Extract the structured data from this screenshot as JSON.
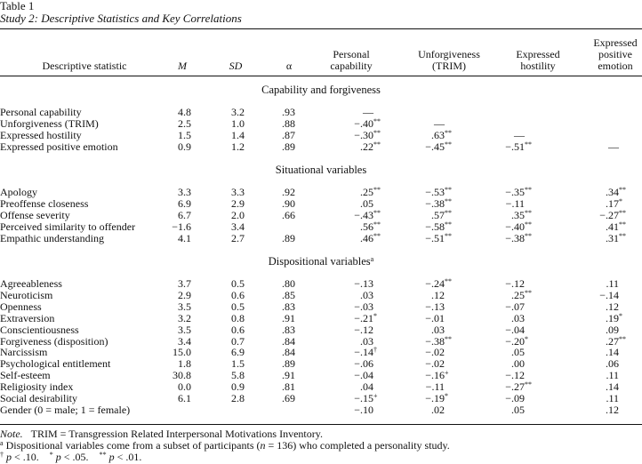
{
  "caption": {
    "number": "Table 1",
    "title": "Study 2: Descriptive Statistics and Key Correlations"
  },
  "columns": {
    "stat": "Descriptive statistic",
    "m": "M",
    "sd": "SD",
    "alpha": "α",
    "pc_1": "Personal",
    "pc_2": "capability",
    "unf_1": "Unforgiveness",
    "unf_2": "(TRIM)",
    "eh_1": "Expressed",
    "eh_2": "hostility",
    "epe_1": "Expressed",
    "epe_2": "positive",
    "epe_3": "emotion"
  },
  "sections": [
    {
      "title": "Capability and forgiveness",
      "title_sup": "",
      "rows": [
        {
          "label": "Personal capability",
          "m": "4.8",
          "sd": "3.2",
          "alpha": ".93",
          "pc": "—",
          "pc_s": "",
          "unf": "",
          "unf_s": "",
          "eh": "",
          "eh_s": "",
          "epe": "",
          "epe_s": ""
        },
        {
          "label": "Unforgiveness (TRIM)",
          "m": "2.5",
          "sd": "1.0",
          "alpha": ".88",
          "pc": "−.40",
          "pc_s": "**",
          "unf": "—",
          "unf_s": "",
          "eh": "",
          "eh_s": "",
          "epe": "",
          "epe_s": ""
        },
        {
          "label": "Expressed hostility",
          "m": "1.5",
          "sd": "1.4",
          "alpha": ".87",
          "pc": "−.30",
          "pc_s": "**",
          "unf": ".63",
          "unf_s": "**",
          "eh": "—",
          "eh_s": "",
          "epe": "",
          "epe_s": ""
        },
        {
          "label": "Expressed positive emotion",
          "m": "0.9",
          "sd": "1.2",
          "alpha": ".89",
          "pc": ".22",
          "pc_s": "**",
          "unf": "−.45",
          "unf_s": "**",
          "eh": "−.51",
          "eh_s": "**",
          "epe": "—",
          "epe_s": ""
        }
      ]
    },
    {
      "title": "Situational variables",
      "title_sup": "",
      "rows": [
        {
          "label": "Apology",
          "m": "3.3",
          "sd": "3.3",
          "alpha": ".92",
          "pc": ".25",
          "pc_s": "**",
          "unf": "−.53",
          "unf_s": "**",
          "eh": "−.35",
          "eh_s": "**",
          "epe": ".34",
          "epe_s": "**"
        },
        {
          "label": "Preoffense closeness",
          "m": "6.9",
          "sd": "2.9",
          "alpha": ".90",
          "pc": ".05",
          "pc_s": "",
          "unf": "−.38",
          "unf_s": "**",
          "eh": "−.11",
          "eh_s": "",
          "epe": ".17",
          "epe_s": "*"
        },
        {
          "label": "Offense severity",
          "m": "6.7",
          "sd": "2.0",
          "alpha": ".66",
          "pc": "−.43",
          "pc_s": "**",
          "unf": ".57",
          "unf_s": "**",
          "eh": ".35",
          "eh_s": "**",
          "epe": "−.27",
          "epe_s": "**"
        },
        {
          "label": "Perceived similarity to offender",
          "m": "−1.6",
          "sd": "3.4",
          "alpha": "",
          "pc": ".56",
          "pc_s": "**",
          "unf": "−.58",
          "unf_s": "**",
          "eh": "−.40",
          "eh_s": "**",
          "epe": ".41",
          "epe_s": "**"
        },
        {
          "label": "Empathic understanding",
          "m": "4.1",
          "sd": "2.7",
          "alpha": ".89",
          "pc": ".46",
          "pc_s": "**",
          "unf": "−.51",
          "unf_s": "**",
          "eh": "−.38",
          "eh_s": "**",
          "epe": ".31",
          "epe_s": "**"
        }
      ]
    },
    {
      "title": "Dispositional variables",
      "title_sup": "a",
      "rows": [
        {
          "label": "Agreeableness",
          "m": "3.7",
          "sd": "0.5",
          "alpha": ".80",
          "pc": "−.13",
          "pc_s": "",
          "unf": "−.24",
          "unf_s": "**",
          "eh": "−.12",
          "eh_s": "",
          "epe": ".11",
          "epe_s": ""
        },
        {
          "label": "Neuroticism",
          "m": "2.9",
          "sd": "0.6",
          "alpha": ".85",
          "pc": ".03",
          "pc_s": "",
          "unf": ".12",
          "unf_s": "",
          "eh": ".25",
          "eh_s": "**",
          "epe": "−.14",
          "epe_s": ""
        },
        {
          "label": "Openness",
          "m": "3.5",
          "sd": "0.5",
          "alpha": ".83",
          "pc": "−.03",
          "pc_s": "",
          "unf": "−.13",
          "unf_s": "",
          "eh": "−.07",
          "eh_s": "",
          "epe": ".12",
          "epe_s": ""
        },
        {
          "label": "Extraversion",
          "m": "3.2",
          "sd": "0.8",
          "alpha": ".91",
          "pc": "−.21",
          "pc_s": "*",
          "unf": "−.01",
          "unf_s": "",
          "eh": ".03",
          "eh_s": "",
          "epe": ".19",
          "epe_s": "*"
        },
        {
          "label": "Conscientiousness",
          "m": "3.5",
          "sd": "0.6",
          "alpha": ".83",
          "pc": "−.12",
          "pc_s": "",
          "unf": ".03",
          "unf_s": "",
          "eh": "−.04",
          "eh_s": "",
          "epe": ".09",
          "epe_s": ""
        },
        {
          "label": "Forgiveness (disposition)",
          "m": "3.4",
          "sd": "0.7",
          "alpha": ".84",
          "pc": ".03",
          "pc_s": "",
          "unf": "−.38",
          "unf_s": "**",
          "eh": "−.20",
          "eh_s": "*",
          "epe": ".27",
          "epe_s": "**"
        },
        {
          "label": "Narcissism",
          "m": "15.0",
          "sd": "6.9",
          "alpha": ".84",
          "pc": "−.14",
          "pc_s": "†",
          "unf": "−.02",
          "unf_s": "",
          "eh": ".05",
          "eh_s": "",
          "epe": ".14",
          "epe_s": ""
        },
        {
          "label": "Psychological entitlement",
          "m": "1.8",
          "sd": "1.5",
          "alpha": ".89",
          "pc": "−.06",
          "pc_s": "",
          "unf": "−.02",
          "unf_s": "",
          "eh": ".00",
          "eh_s": "",
          "epe": ".06",
          "epe_s": ""
        },
        {
          "label": "Self-esteem",
          "m": "30.8",
          "sd": "5.8",
          "alpha": ".91",
          "pc": "−.04",
          "pc_s": "",
          "unf": "−.16",
          "unf_s": "+",
          "eh": "−.12",
          "eh_s": "",
          "epe": ".11",
          "epe_s": ""
        },
        {
          "label": "Religiosity index",
          "m": "0.0",
          "sd": "0.9",
          "alpha": ".81",
          "pc": ".04",
          "pc_s": "",
          "unf": "−.11",
          "unf_s": "",
          "eh": "−.27",
          "eh_s": "**",
          "epe": ".14",
          "epe_s": ""
        },
        {
          "label": "Social desirability",
          "m": "6.1",
          "sd": "2.8",
          "alpha": ".69",
          "pc": "−.15",
          "pc_s": "+",
          "unf": "−.19",
          "unf_s": "*",
          "eh": "−.09",
          "eh_s": "",
          "epe": ".11",
          "epe_s": ""
        },
        {
          "label": "Gender (0 = male; 1 = female)",
          "m": "",
          "sd": "",
          "alpha": "",
          "pc": "−.10",
          "pc_s": "",
          "unf": ".02",
          "unf_s": "",
          "eh": ".05",
          "eh_s": "",
          "epe": ".12",
          "epe_s": ""
        }
      ]
    }
  ],
  "notes": {
    "note_label": "Note.",
    "note_text": "TRIM = Transgression Related Interpersonal Motivations Inventory.",
    "a_mark": "a",
    "a_text_1": " Dispositional variables come from a subset of participants (",
    "a_n": "n",
    "a_text_2": " = 136) who completed a personality study.",
    "dagger": "†",
    "p1": " p ",
    "p1_val": "< .10.",
    "star1": "*",
    "p2": " p ",
    "p2_val": "< .05.",
    "star2": "**",
    "p3": " p ",
    "p3_val": "< .01."
  }
}
